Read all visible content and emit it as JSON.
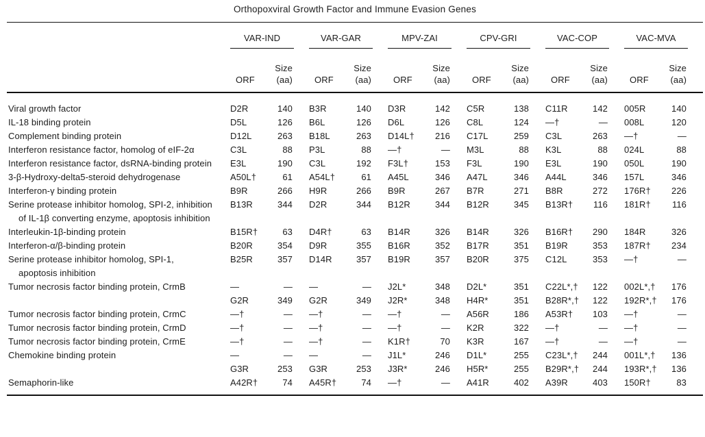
{
  "title": "Orthopoxviral Growth Factor and Immune Evasion Genes",
  "table": {
    "groups": [
      "VAR-IND",
      "VAR-GAR",
      "MPV-ZAI",
      "CPV-GRI",
      "VAC-COP",
      "VAC-MVA"
    ],
    "sub": {
      "orf": "ORF",
      "size": "Size",
      "size_unit": "(aa)"
    },
    "rows": [
      {
        "gene": "Viral growth factor",
        "cells": [
          "D2R",
          "140",
          "B3R",
          "140",
          "D3R",
          "142",
          "C5R",
          "138",
          "C11R",
          "142",
          "005R",
          "140"
        ]
      },
      {
        "gene": "IL-18 binding protein",
        "cells": [
          "D5L",
          "126",
          "B6L",
          "126",
          "D6L",
          "126",
          "C8L",
          "124",
          "—†",
          "—",
          "008L",
          "120"
        ]
      },
      {
        "gene": "Complement binding protein",
        "cells": [
          "D12L",
          "263",
          "B18L",
          "263",
          "D14L†",
          "216",
          "C17L",
          "259",
          "C3L",
          "263",
          "—†",
          "—"
        ]
      },
      {
        "gene": "Interferon resistance factor, homolog of eIF-2α",
        "cells": [
          "C3L",
          "88",
          "P3L",
          "88",
          "—†",
          "—",
          "M3L",
          "88",
          "K3L",
          "88",
          "024L",
          "88"
        ]
      },
      {
        "gene": "Interferon resistance factor, dsRNA-binding protein",
        "cells": [
          "E3L",
          "190",
          "C3L",
          "192",
          "F3L†",
          "153",
          "F3L",
          "190",
          "E3L",
          "190",
          "050L",
          "190"
        ]
      },
      {
        "gene": "3-β-Hydroxy-delta5-steroid dehydrogenase",
        "cells": [
          "A50L†",
          "61",
          "A54L†",
          "61",
          "A45L",
          "346",
          "A47L",
          "346",
          "A44L",
          "346",
          "157L",
          "346"
        ]
      },
      {
        "gene": "Interferon-γ binding protein",
        "cells": [
          "B9R",
          "266",
          "H9R",
          "266",
          "B9R",
          "267",
          "B7R",
          "271",
          "B8R",
          "272",
          "176R†",
          "226"
        ]
      },
      {
        "gene": "Serine protease inhibitor homolog, SPI-2, inhibition of IL-1β converting enzyme, apoptosis inhibition",
        "cells": [
          "B13R",
          "344",
          "D2R",
          "344",
          "B12R",
          "344",
          "B12R",
          "345",
          "B13R†",
          "116",
          "181R†",
          "116"
        ]
      },
      {
        "gene": "Interleukin-1β-binding protein",
        "cells": [
          "B15R†",
          "63",
          "D4R†",
          "63",
          "B14R",
          "326",
          "B14R",
          "326",
          "B16R†",
          "290",
          "184R",
          "326"
        ]
      },
      {
        "gene": "Interferon-α/β-binding protein",
        "cells": [
          "B20R",
          "354",
          "D9R",
          "355",
          "B16R",
          "352",
          "B17R",
          "351",
          "B19R",
          "353",
          "187R†",
          "234"
        ]
      },
      {
        "gene": "Serine protease inhibitor homolog, SPI-1, apoptosis inhibition",
        "cells": [
          "B25R",
          "357",
          "D14R",
          "357",
          "B19R",
          "357",
          "B20R",
          "375",
          "C12L",
          "353",
          "—†",
          "—"
        ]
      },
      {
        "gene": "Tumor necrosis factor binding protein, CrmB",
        "cells": [
          "—",
          "—",
          "—",
          "—",
          "J2L*",
          "348",
          "D2L*",
          "351",
          "C22L*,†",
          "122",
          "002L*,†",
          "176"
        ]
      },
      {
        "gene": "",
        "cells": [
          "G2R",
          "349",
          "G2R",
          "349",
          "J2R*",
          "348",
          "H4R*",
          "351",
          "B28R*,†",
          "122",
          "192R*,†",
          "176"
        ]
      },
      {
        "gene": "Tumor necrosis factor binding protein, CrmC",
        "cells": [
          "—†",
          "—",
          "—†",
          "—",
          "—†",
          "—",
          "A56R",
          "186",
          "A53R†",
          "103",
          "—†",
          "—"
        ]
      },
      {
        "gene": "Tumor necrosis factor binding protein, CrmD",
        "cells": [
          "—†",
          "—",
          "—†",
          "—",
          "—†",
          "—",
          "K2R",
          "322",
          "—†",
          "—",
          "—†",
          "—"
        ]
      },
      {
        "gene": "Tumor necrosis factor binding protein, CrmE",
        "cells": [
          "—†",
          "—",
          "—†",
          "—",
          "K1R†",
          "70",
          "K3R",
          "167",
          "—†",
          "—",
          "—†",
          "—"
        ]
      },
      {
        "gene": "Chemokine binding protein",
        "cells": [
          "—",
          "—",
          "—",
          "—",
          "J1L*",
          "246",
          "D1L*",
          "255",
          "C23L*,†",
          "244",
          "001L*,†",
          "136"
        ]
      },
      {
        "gene": "",
        "cells": [
          "G3R",
          "253",
          "G3R",
          "253",
          "J3R*",
          "246",
          "H5R*",
          "255",
          "B29R*,†",
          "244",
          "193R*,†",
          "136"
        ]
      },
      {
        "gene": "Semaphorin-like",
        "cells": [
          "A42R†",
          "74",
          "A45R†",
          "74",
          "—†",
          "—",
          "A41R",
          "402",
          "A39R",
          "403",
          "150R†",
          "83"
        ]
      }
    ]
  }
}
